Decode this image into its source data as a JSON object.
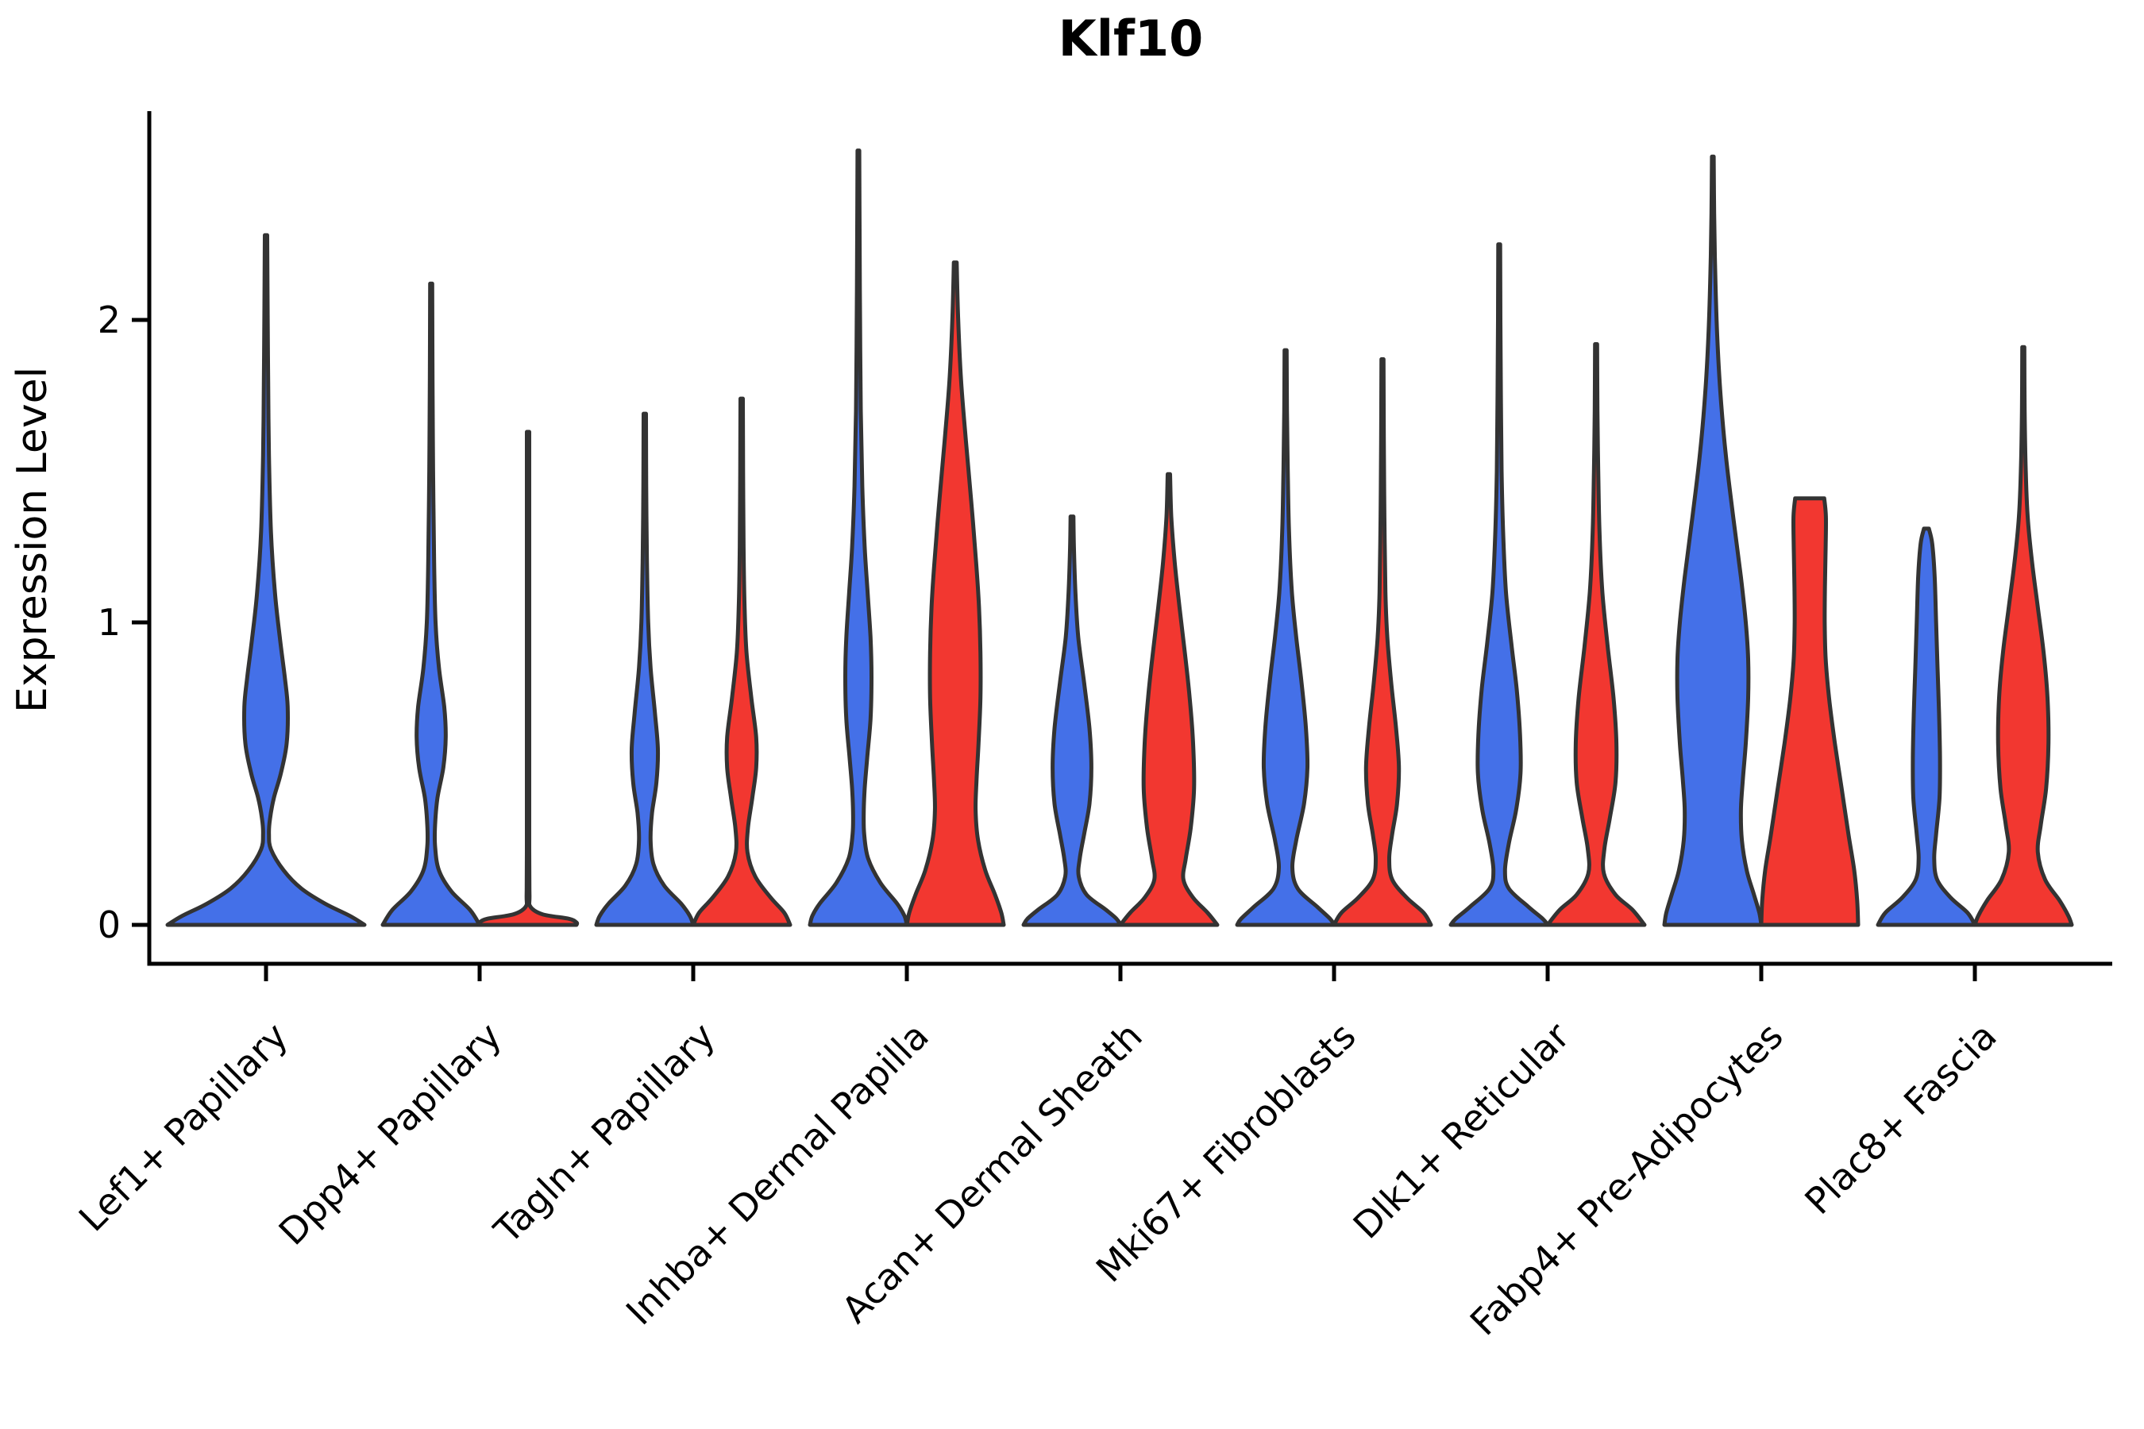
{
  "title": "Klf10",
  "chart_data": {
    "type": "violin",
    "title": "Klf10",
    "xlabel": "",
    "ylabel": "Expression Level",
    "yticks": [
      0,
      1,
      2
    ],
    "ylim": [
      -0.13,
      2.66
    ],
    "grid": false,
    "legend": "none",
    "outline_color": "#333333",
    "background": "#ffffff",
    "series": [
      {
        "key": "blue",
        "color": "#4470E8"
      },
      {
        "key": "red",
        "color": "#F23730"
      }
    ],
    "categories": [
      "Lef1+ Papillary",
      "Dpp4+ Papillary",
      "Tagln+ Papillary",
      "Inhba+ Dermal Papilla",
      "Acan+ Dermal Sheath",
      "Mki67+ Fibroblasts",
      "Dlk1+ Reticular",
      "Fabp4+ Pre-Adipocytes",
      "Plac8+ Fascia"
    ],
    "violins": [
      {
        "cat": 0,
        "series": 0,
        "span": "full",
        "max": 2.28,
        "profile": [
          [
            2.28,
            0.012
          ],
          [
            2.05,
            0.016
          ],
          [
            1.8,
            0.022
          ],
          [
            1.55,
            0.03
          ],
          [
            1.3,
            0.05
          ],
          [
            1.1,
            0.09
          ],
          [
            0.95,
            0.14
          ],
          [
            0.82,
            0.19
          ],
          [
            0.72,
            0.22
          ],
          [
            0.6,
            0.21
          ],
          [
            0.5,
            0.15
          ],
          [
            0.42,
            0.08
          ],
          [
            0.35,
            0.04
          ],
          [
            0.3,
            0.03
          ],
          [
            0.25,
            0.05
          ],
          [
            0.18,
            0.18
          ],
          [
            0.12,
            0.36
          ],
          [
            0.07,
            0.6
          ],
          [
            0.03,
            0.85
          ],
          [
            0,
            1.0
          ]
        ]
      },
      {
        "cat": 1,
        "series": 0,
        "span": "half",
        "max": 2.12,
        "profile": [
          [
            2.12,
            0.022
          ],
          [
            1.8,
            0.028
          ],
          [
            1.5,
            0.04
          ],
          [
            1.2,
            0.06
          ],
          [
            1.0,
            0.09
          ],
          [
            0.85,
            0.16
          ],
          [
            0.72,
            0.27
          ],
          [
            0.62,
            0.3
          ],
          [
            0.52,
            0.25
          ],
          [
            0.42,
            0.13
          ],
          [
            0.33,
            0.08
          ],
          [
            0.26,
            0.08
          ],
          [
            0.18,
            0.16
          ],
          [
            0.11,
            0.42
          ],
          [
            0.05,
            0.8
          ],
          [
            0,
            1.0
          ]
        ]
      },
      {
        "cat": 1,
        "series": 1,
        "span": "half",
        "max": 1.63,
        "profile": [
          [
            1.63,
            0.025
          ],
          [
            1.2,
            0.025
          ],
          [
            0.7,
            0.025
          ],
          [
            0.25,
            0.025
          ],
          [
            0.1,
            0.03
          ],
          [
            0.06,
            0.05
          ],
          [
            0.035,
            0.3
          ],
          [
            0.02,
            0.85
          ],
          [
            0.008,
            1.0
          ],
          [
            0,
            1.0
          ]
        ]
      },
      {
        "cat": 2,
        "series": 0,
        "span": "half",
        "max": 1.69,
        "profile": [
          [
            1.69,
            0.025
          ],
          [
            1.45,
            0.03
          ],
          [
            1.2,
            0.045
          ],
          [
            1.0,
            0.07
          ],
          [
            0.85,
            0.12
          ],
          [
            0.7,
            0.21
          ],
          [
            0.58,
            0.27
          ],
          [
            0.47,
            0.24
          ],
          [
            0.37,
            0.15
          ],
          [
            0.28,
            0.12
          ],
          [
            0.2,
            0.18
          ],
          [
            0.13,
            0.4
          ],
          [
            0.07,
            0.75
          ],
          [
            0.03,
            0.93
          ],
          [
            0,
            1.0
          ]
        ]
      },
      {
        "cat": 2,
        "series": 1,
        "span": "half",
        "max": 1.74,
        "profile": [
          [
            1.74,
            0.025
          ],
          [
            1.5,
            0.03
          ],
          [
            1.25,
            0.04
          ],
          [
            1.05,
            0.06
          ],
          [
            0.9,
            0.1
          ],
          [
            0.75,
            0.2
          ],
          [
            0.62,
            0.3
          ],
          [
            0.52,
            0.3
          ],
          [
            0.42,
            0.22
          ],
          [
            0.32,
            0.13
          ],
          [
            0.24,
            0.12
          ],
          [
            0.16,
            0.28
          ],
          [
            0.09,
            0.6
          ],
          [
            0.04,
            0.88
          ],
          [
            0,
            1.0
          ]
        ]
      },
      {
        "cat": 3,
        "series": 0,
        "span": "half",
        "max": 2.56,
        "profile": [
          [
            2.56,
            0.018
          ],
          [
            2.3,
            0.024
          ],
          [
            2.0,
            0.034
          ],
          [
            1.7,
            0.05
          ],
          [
            1.45,
            0.08
          ],
          [
            1.25,
            0.13
          ],
          [
            1.1,
            0.19
          ],
          [
            0.95,
            0.25
          ],
          [
            0.82,
            0.27
          ],
          [
            0.68,
            0.25
          ],
          [
            0.55,
            0.18
          ],
          [
            0.45,
            0.13
          ],
          [
            0.37,
            0.11
          ],
          [
            0.3,
            0.12
          ],
          [
            0.22,
            0.2
          ],
          [
            0.14,
            0.45
          ],
          [
            0.07,
            0.8
          ],
          [
            0.03,
            0.95
          ],
          [
            0,
            1.0
          ]
        ]
      },
      {
        "cat": 3,
        "series": 1,
        "span": "half",
        "max": 2.19,
        "profile": [
          [
            2.19,
            0.03
          ],
          [
            2.0,
            0.06
          ],
          [
            1.8,
            0.12
          ],
          [
            1.6,
            0.22
          ],
          [
            1.4,
            0.33
          ],
          [
            1.2,
            0.43
          ],
          [
            1.05,
            0.49
          ],
          [
            0.9,
            0.52
          ],
          [
            0.75,
            0.52
          ],
          [
            0.6,
            0.48
          ],
          [
            0.48,
            0.44
          ],
          [
            0.38,
            0.42
          ],
          [
            0.28,
            0.47
          ],
          [
            0.18,
            0.62
          ],
          [
            0.1,
            0.82
          ],
          [
            0.04,
            0.95
          ],
          [
            0,
            1.0
          ]
        ]
      },
      {
        "cat": 4,
        "series": 0,
        "span": "half",
        "max": 1.35,
        "profile": [
          [
            1.35,
            0.03
          ],
          [
            1.25,
            0.04
          ],
          [
            1.1,
            0.07
          ],
          [
            0.95,
            0.13
          ],
          [
            0.8,
            0.25
          ],
          [
            0.65,
            0.36
          ],
          [
            0.52,
            0.4
          ],
          [
            0.4,
            0.36
          ],
          [
            0.3,
            0.25
          ],
          [
            0.22,
            0.16
          ],
          [
            0.16,
            0.14
          ],
          [
            0.1,
            0.3
          ],
          [
            0.05,
            0.7
          ],
          [
            0.02,
            0.92
          ],
          [
            0,
            1.0
          ]
        ]
      },
      {
        "cat": 4,
        "series": 1,
        "span": "half",
        "max": 1.49,
        "profile": [
          [
            1.49,
            0.025
          ],
          [
            1.35,
            0.05
          ],
          [
            1.2,
            0.12
          ],
          [
            1.05,
            0.22
          ],
          [
            0.9,
            0.33
          ],
          [
            0.75,
            0.43
          ],
          [
            0.6,
            0.5
          ],
          [
            0.45,
            0.52
          ],
          [
            0.32,
            0.45
          ],
          [
            0.22,
            0.35
          ],
          [
            0.15,
            0.3
          ],
          [
            0.09,
            0.5
          ],
          [
            0.04,
            0.8
          ],
          [
            0,
            1.0
          ]
        ]
      },
      {
        "cat": 5,
        "series": 0,
        "span": "half",
        "max": 1.9,
        "profile": [
          [
            1.9,
            0.022
          ],
          [
            1.7,
            0.028
          ],
          [
            1.5,
            0.045
          ],
          [
            1.3,
            0.07
          ],
          [
            1.1,
            0.13
          ],
          [
            0.95,
            0.22
          ],
          [
            0.8,
            0.33
          ],
          [
            0.65,
            0.42
          ],
          [
            0.52,
            0.45
          ],
          [
            0.4,
            0.38
          ],
          [
            0.28,
            0.22
          ],
          [
            0.19,
            0.14
          ],
          [
            0.12,
            0.25
          ],
          [
            0.06,
            0.65
          ],
          [
            0.02,
            0.92
          ],
          [
            0,
            1.0
          ]
        ]
      },
      {
        "cat": 5,
        "series": 1,
        "span": "half",
        "max": 1.87,
        "profile": [
          [
            1.87,
            0.022
          ],
          [
            1.6,
            0.028
          ],
          [
            1.35,
            0.04
          ],
          [
            1.1,
            0.06
          ],
          [
            0.95,
            0.1
          ],
          [
            0.8,
            0.18
          ],
          [
            0.65,
            0.28
          ],
          [
            0.52,
            0.34
          ],
          [
            0.4,
            0.3
          ],
          [
            0.3,
            0.2
          ],
          [
            0.22,
            0.14
          ],
          [
            0.15,
            0.2
          ],
          [
            0.09,
            0.5
          ],
          [
            0.04,
            0.85
          ],
          [
            0,
            1.0
          ]
        ]
      },
      {
        "cat": 6,
        "series": 0,
        "span": "half",
        "max": 2.25,
        "profile": [
          [
            2.25,
            0.02
          ],
          [
            2.0,
            0.025
          ],
          [
            1.75,
            0.035
          ],
          [
            1.5,
            0.05
          ],
          [
            1.3,
            0.08
          ],
          [
            1.1,
            0.14
          ],
          [
            0.93,
            0.25
          ],
          [
            0.78,
            0.36
          ],
          [
            0.63,
            0.43
          ],
          [
            0.5,
            0.44
          ],
          [
            0.38,
            0.35
          ],
          [
            0.27,
            0.2
          ],
          [
            0.18,
            0.12
          ],
          [
            0.12,
            0.2
          ],
          [
            0.06,
            0.6
          ],
          [
            0.02,
            0.9
          ],
          [
            0,
            1.0
          ]
        ]
      },
      {
        "cat": 6,
        "series": 1,
        "span": "half",
        "max": 1.92,
        "profile": [
          [
            1.92,
            0.022
          ],
          [
            1.7,
            0.028
          ],
          [
            1.5,
            0.045
          ],
          [
            1.3,
            0.07
          ],
          [
            1.1,
            0.13
          ],
          [
            0.92,
            0.24
          ],
          [
            0.75,
            0.36
          ],
          [
            0.6,
            0.42
          ],
          [
            0.47,
            0.4
          ],
          [
            0.35,
            0.28
          ],
          [
            0.25,
            0.17
          ],
          [
            0.17,
            0.16
          ],
          [
            0.1,
            0.4
          ],
          [
            0.05,
            0.75
          ],
          [
            0,
            1.0
          ]
        ]
      },
      {
        "cat": 7,
        "series": 0,
        "span": "half",
        "max": 2.54,
        "profile": [
          [
            2.54,
            0.018
          ],
          [
            2.35,
            0.028
          ],
          [
            2.15,
            0.05
          ],
          [
            1.95,
            0.09
          ],
          [
            1.75,
            0.16
          ],
          [
            1.55,
            0.27
          ],
          [
            1.35,
            0.42
          ],
          [
            1.15,
            0.58
          ],
          [
            1.0,
            0.68
          ],
          [
            0.88,
            0.73
          ],
          [
            0.75,
            0.73
          ],
          [
            0.6,
            0.68
          ],
          [
            0.48,
            0.62
          ],
          [
            0.38,
            0.58
          ],
          [
            0.28,
            0.6
          ],
          [
            0.18,
            0.7
          ],
          [
            0.1,
            0.85
          ],
          [
            0.04,
            0.96
          ],
          [
            0,
            1.0
          ]
        ]
      },
      {
        "cat": 7,
        "series": 1,
        "span": "half",
        "max": 1.41,
        "profile": [
          [
            1.41,
            0.3
          ],
          [
            1.35,
            0.335
          ],
          [
            1.25,
            0.33
          ],
          [
            1.12,
            0.315
          ],
          [
            1.0,
            0.31
          ],
          [
            0.88,
            0.33
          ],
          [
            0.75,
            0.4
          ],
          [
            0.6,
            0.52
          ],
          [
            0.45,
            0.66
          ],
          [
            0.3,
            0.8
          ],
          [
            0.18,
            0.92
          ],
          [
            0.08,
            0.98
          ],
          [
            0,
            1.0
          ]
        ]
      },
      {
        "cat": 8,
        "series": 0,
        "span": "half",
        "max": 1.31,
        "profile": [
          [
            1.31,
            0.05
          ],
          [
            1.26,
            0.12
          ],
          [
            1.15,
            0.17
          ],
          [
            1.0,
            0.2
          ],
          [
            0.85,
            0.23
          ],
          [
            0.7,
            0.26
          ],
          [
            0.55,
            0.28
          ],
          [
            0.42,
            0.27
          ],
          [
            0.3,
            0.2
          ],
          [
            0.22,
            0.16
          ],
          [
            0.15,
            0.22
          ],
          [
            0.09,
            0.5
          ],
          [
            0.04,
            0.85
          ],
          [
            0,
            1.0
          ]
        ]
      },
      {
        "cat": 8,
        "series": 1,
        "span": "half",
        "max": 1.91,
        "profile": [
          [
            1.91,
            0.022
          ],
          [
            1.7,
            0.028
          ],
          [
            1.5,
            0.05
          ],
          [
            1.35,
            0.09
          ],
          [
            1.2,
            0.18
          ],
          [
            1.05,
            0.3
          ],
          [
            0.9,
            0.42
          ],
          [
            0.75,
            0.5
          ],
          [
            0.6,
            0.52
          ],
          [
            0.45,
            0.47
          ],
          [
            0.33,
            0.36
          ],
          [
            0.24,
            0.3
          ],
          [
            0.15,
            0.45
          ],
          [
            0.08,
            0.75
          ],
          [
            0.03,
            0.93
          ],
          [
            0,
            1.0
          ]
        ]
      }
    ]
  }
}
